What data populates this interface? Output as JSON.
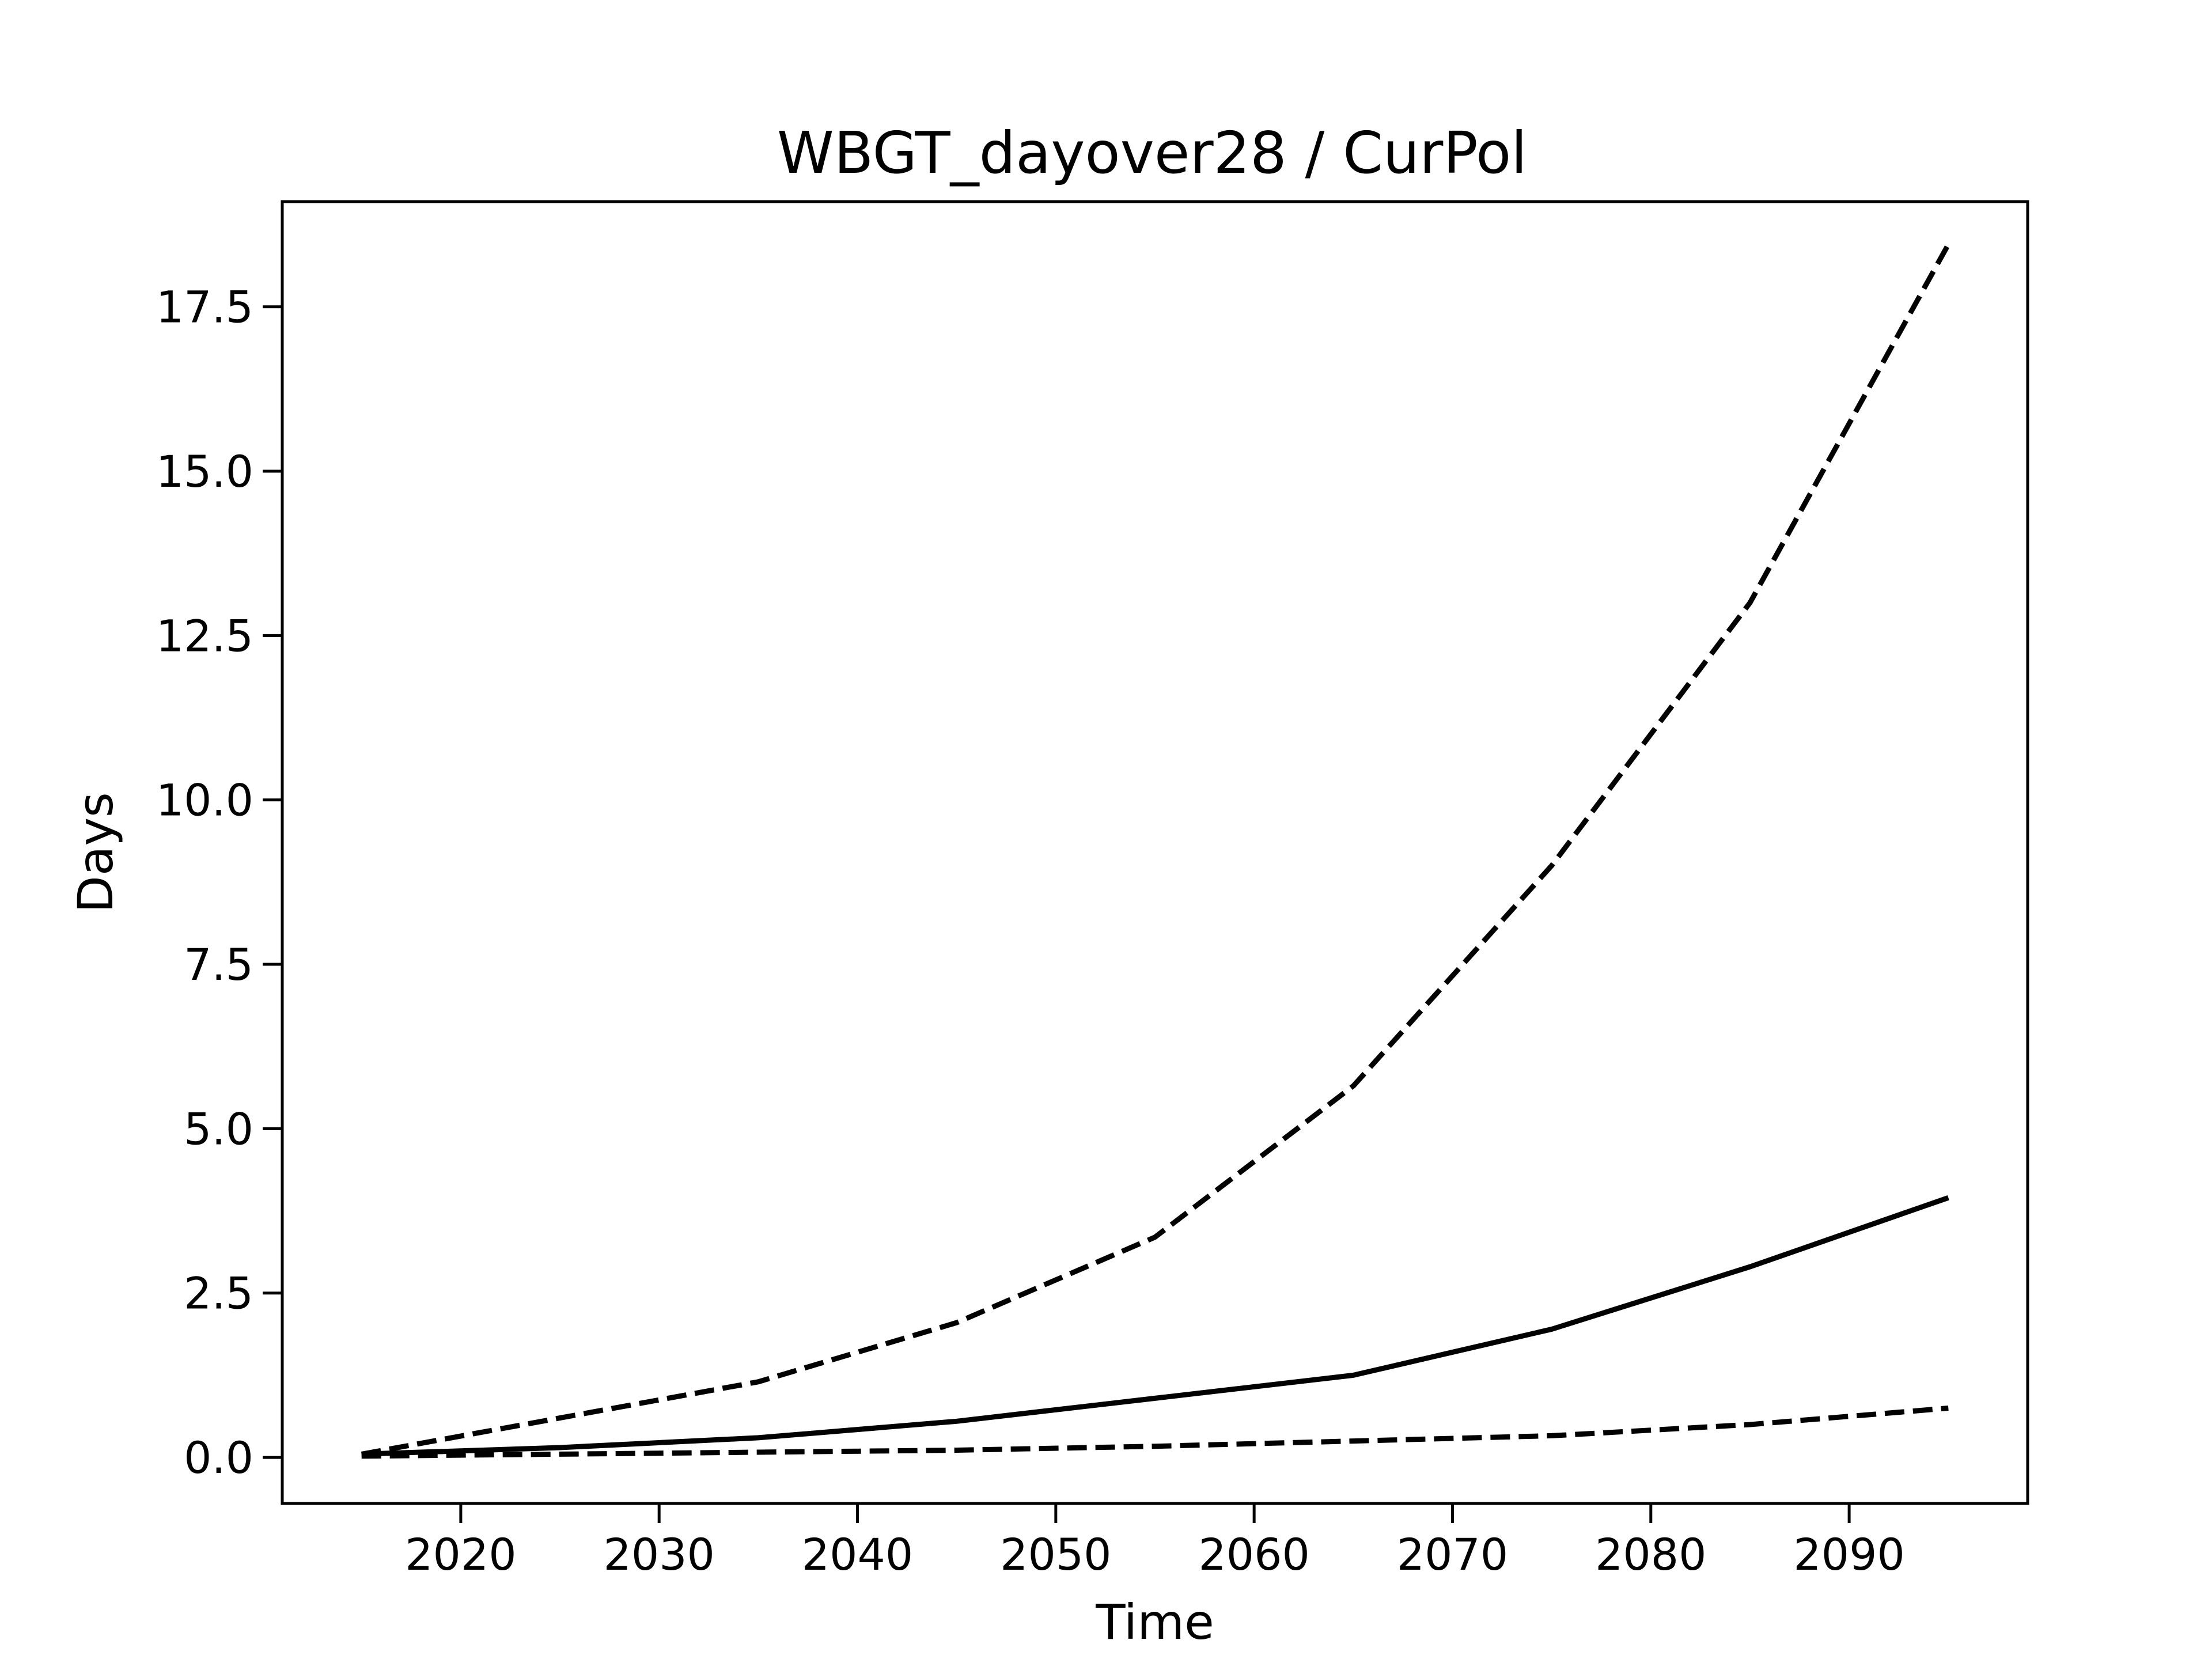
{
  "chart_data": {
    "type": "line",
    "title": "WBGT_dayover28 / CurPol",
    "xlabel": "Time",
    "ylabel": "Days",
    "xlim": [
      2011,
      2099
    ],
    "ylim": [
      -0.7,
      19.1
    ],
    "x_ticks": [
      2020,
      2030,
      2040,
      2050,
      2060,
      2070,
      2080,
      2090
    ],
    "y_ticks": [
      0.0,
      2.5,
      5.0,
      7.5,
      10.0,
      12.5,
      15.0,
      17.5
    ],
    "x_tick_labels": [
      "2020",
      "2030",
      "2040",
      "2050",
      "2060",
      "2070",
      "2080",
      "2090"
    ],
    "y_tick_labels": [
      "0.0",
      "2.5",
      "5.0",
      "7.5",
      "10.0",
      "12.5",
      "15.0",
      "17.5"
    ],
    "grid": false,
    "legend": "none",
    "x": [
      2015,
      2025,
      2035,
      2045,
      2055,
      2065,
      2075,
      2085,
      2095
    ],
    "series": [
      {
        "style": "dashed",
        "color": "#000000",
        "values": [
          0.05,
          0.6,
          1.15,
          2.05,
          3.35,
          5.65,
          9.0,
          13.0,
          18.45
        ]
      },
      {
        "style": "solid",
        "color": "#000000",
        "values": [
          0.05,
          0.15,
          0.3,
          0.55,
          0.9,
          1.25,
          1.95,
          2.9,
          3.95
        ]
      },
      {
        "style": "dashed",
        "color": "#000000",
        "values": [
          0.02,
          0.05,
          0.08,
          0.11,
          0.17,
          0.25,
          0.33,
          0.5,
          0.75
        ]
      }
    ]
  }
}
